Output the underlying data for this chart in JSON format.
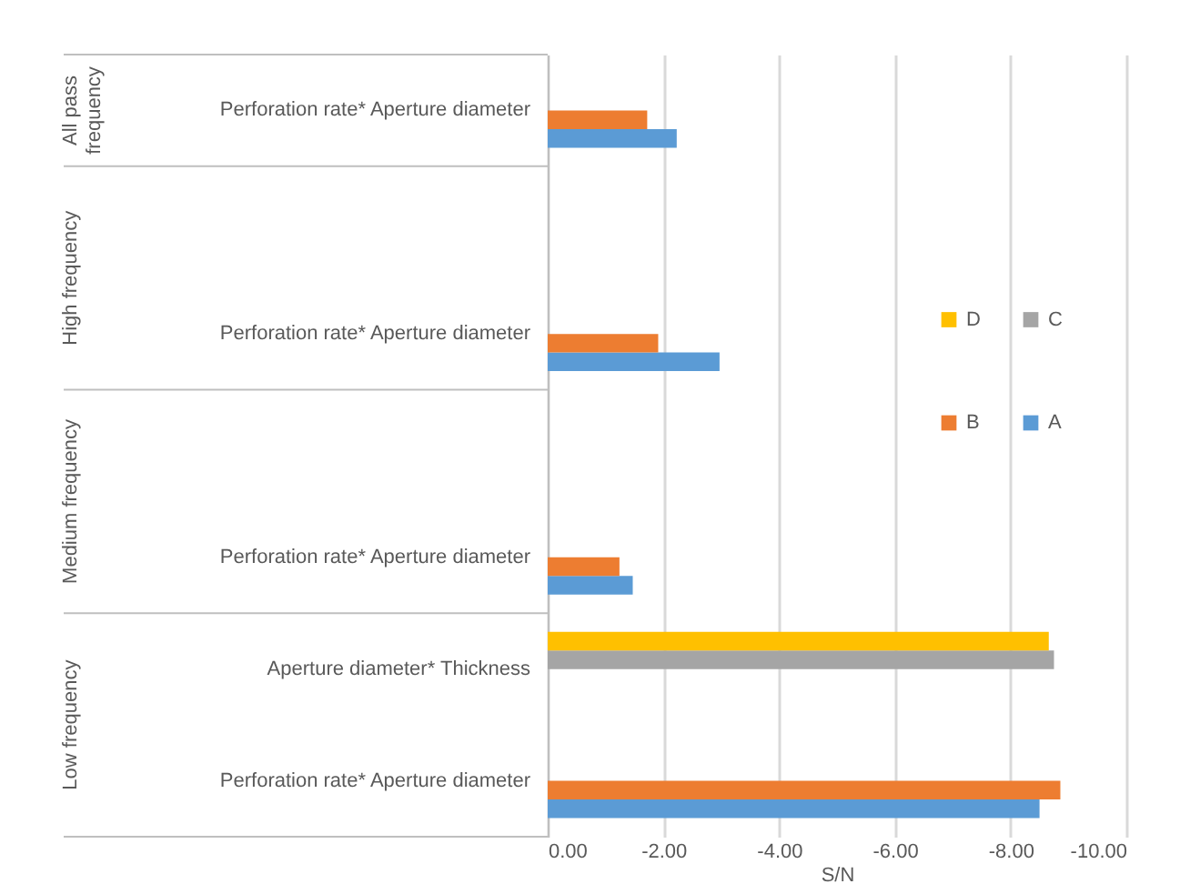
{
  "chart_data": {
    "type": "bar",
    "orientation": "horizontal",
    "xlabel": "S/N",
    "categories": [
      "Perforation rate* Aperture diameter",
      null,
      "Perforation rate* Aperture diameter",
      null,
      "Perforation rate* Aperture diameter",
      "Aperture diameter* Thickness",
      "Perforation rate* Aperture diameter"
    ],
    "annotations": [
      "All pass frequency",
      "High frequency",
      "Medium frequency",
      "Low frequency"
    ],
    "series": [
      {
        "name": "A",
        "color": "#5b9bd5",
        "values": [
          -2.23,
          null,
          -2.97,
          null,
          -1.47,
          null,
          -8.5
        ]
      },
      {
        "name": "B",
        "color": "#ed7d31",
        "values": [
          -1.72,
          null,
          -1.91,
          null,
          -1.24,
          null,
          -8.86
        ]
      },
      {
        "name": "C",
        "color": "#a5a5a5",
        "values": [
          null,
          null,
          null,
          null,
          null,
          -8.75,
          null
        ]
      },
      {
        "name": "D",
        "color": "#ffc000",
        "values": [
          null,
          null,
          null,
          null,
          null,
          -8.66,
          null
        ]
      }
    ],
    "xlim": [
      0,
      -10
    ],
    "xticks": [
      {
        "value": 0,
        "label": "0.00"
      },
      {
        "value": -2,
        "label": "-2.00"
      },
      {
        "value": -4,
        "label": "-4.00"
      },
      {
        "value": -6,
        "label": "-6.00"
      },
      {
        "value": -8,
        "label": "-8.00"
      },
      {
        "value": -10,
        "label": "-10.00"
      }
    ],
    "grid": "x",
    "legend": "right"
  }
}
